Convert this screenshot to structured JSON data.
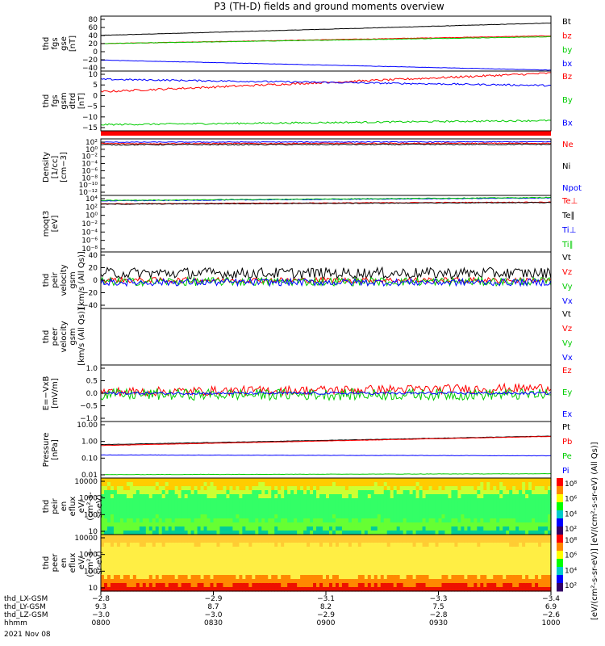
{
  "title": "P3 (TH-D) fields and ground moments overview",
  "chart_data": [
    {
      "type": "line",
      "ylabel": [
        "thd",
        "fgs",
        "gse",
        "[nT]"
      ],
      "yticks": [
        "80",
        "60",
        "40",
        "20",
        "0",
        "−20",
        "−40"
      ],
      "ylim": [
        -40,
        80
      ],
      "series": [
        {
          "name": "Bt",
          "color": "#000000",
          "start": 38,
          "end": 65,
          "noise": 0.4
        },
        {
          "name": "bz",
          "color": "#ff0000",
          "start": 20,
          "end": 37,
          "noise": 0.5
        },
        {
          "name": "by",
          "color": "#00cc00",
          "start": 20,
          "end": 35,
          "noise": 0.5
        },
        {
          "name": "bx",
          "color": "#0000ff",
          "start": -16,
          "end": -38,
          "noise": 0.4
        }
      ]
    },
    {
      "type": "line",
      "ylabel": [
        "thd",
        "fgs",
        "gsm",
        "dtrd",
        "[nT]"
      ],
      "yticks": [
        "10",
        "5",
        "0",
        "−5",
        "−10",
        "−15"
      ],
      "ylim": [
        -18,
        11
      ],
      "series": [
        {
          "name": "Bz",
          "color": "#ff0000",
          "start": 1,
          "end": 10,
          "noise": 0.5
        },
        {
          "name": "By",
          "color": "#00cc00",
          "start": -15,
          "end": -13,
          "noise": 0.4
        },
        {
          "name": "Bx",
          "color": "#0000ff",
          "start": 7,
          "end": 4,
          "noise": 0.4
        }
      ]
    },
    {
      "type": "line",
      "ylabel": [
        "Density",
        "[1/cc]",
        "[cm−3]"
      ],
      "yticks": [
        "10²",
        "10⁰",
        "10⁻²",
        "10⁻⁴",
        "10⁻⁶",
        "10⁻⁸",
        "10⁻¹⁰",
        "10⁻¹²"
      ],
      "ylim": [
        -13,
        2.5
      ],
      "log": true,
      "series": [
        {
          "name": "Ne",
          "color": "#ff0000",
          "start": 1.2,
          "end": 1.3,
          "noise": 0.15
        },
        {
          "name": "Ni",
          "color": "#000000",
          "start": 0.9,
          "end": 1.0,
          "noise": 0.15
        },
        {
          "name": "Npot",
          "color": "#0000ff",
          "start": 1.6,
          "end": 1.7,
          "noise": 0.1
        }
      ]
    },
    {
      "type": "line",
      "ylabel": [
        "moqt3",
        "[eV]"
      ],
      "yticks": [
        "10⁴",
        "10²",
        "10⁰",
        "10⁻²",
        "10⁻⁴",
        "10⁻⁶",
        "10⁻⁸"
      ],
      "ylim": [
        -9,
        4.5
      ],
      "log": true,
      "series": [
        {
          "name": "Te⊥",
          "color": "#ff0000",
          "start": 2.5,
          "end": 2.9,
          "noise": 0.08
        },
        {
          "name": "Te∥",
          "color": "#000000",
          "start": 2.4,
          "end": 2.8,
          "noise": 0.08
        },
        {
          "name": "Ti⊥",
          "color": "#0000ff",
          "start": 3.2,
          "end": 3.9,
          "noise": 0.08
        },
        {
          "name": "Ti∥",
          "color": "#00cc00",
          "start": 3.3,
          "end": 4.0,
          "noise": 0.08
        }
      ]
    },
    {
      "type": "line",
      "ylabel": [
        "thd",
        "peir",
        "velocity",
        "gsm",
        "[km/s (All Qs)]"
      ],
      "yticks": [
        "40",
        "20",
        "0",
        "−20",
        "−40"
      ],
      "ylim": [
        -40,
        40
      ],
      "series": [
        {
          "name": "Vt",
          "color": "#000000",
          "start": 10,
          "end": 10,
          "noise": 8
        },
        {
          "name": "Vz",
          "color": "#ff0000",
          "start": 0,
          "end": 0,
          "noise": 4
        },
        {
          "name": "Vy",
          "color": "#00cc00",
          "start": -2,
          "end": -2,
          "noise": 6
        },
        {
          "name": "Vx",
          "color": "#0000ff",
          "start": -3,
          "end": -3,
          "noise": 5
        }
      ]
    },
    {
      "type": "line",
      "ylabel": [
        "thd",
        "peer",
        "velocity",
        "gsm",
        "[km/s (All Qs)]"
      ],
      "yticks": [],
      "ylim": [
        -1,
        1
      ],
      "series": [
        {
          "name": "Vt",
          "color": "#000000"
        },
        {
          "name": "Vz",
          "color": "#ff0000"
        },
        {
          "name": "Vy",
          "color": "#00cc00"
        },
        {
          "name": "Vx",
          "color": "#0000ff"
        }
      ]
    },
    {
      "type": "line",
      "ylabel": [
        "E=−VxB",
        "[mV/m]"
      ],
      "yticks": [
        "1.0",
        "0.5",
        "0.0",
        "−0.5",
        "−1.0"
      ],
      "ylim": [
        -1.1,
        1.1
      ],
      "series": [
        {
          "name": "Ez",
          "color": "#ff0000",
          "start": 0.05,
          "end": 0.2,
          "noise": 0.18
        },
        {
          "name": "Ey",
          "color": "#00cc00",
          "start": -0.05,
          "end": -0.05,
          "noise": 0.22
        },
        {
          "name": "Ex",
          "color": "#0000ff",
          "start": 0,
          "end": 0,
          "noise": 0.05
        }
      ]
    },
    {
      "type": "line",
      "ylabel": [
        "Pressure",
        "[nPa]"
      ],
      "yticks": [
        "10.00",
        "1.00",
        "0.10",
        "0.01"
      ],
      "ylim": [
        -2.1,
        1.2
      ],
      "log": true,
      "series": [
        {
          "name": "Pt",
          "color": "#000000",
          "start": -0.15,
          "end": 0.35,
          "noise": 0.01
        },
        {
          "name": "Pb",
          "color": "#ff0000",
          "start": -0.2,
          "end": 0.33,
          "noise": 0.01
        },
        {
          "name": "Pe",
          "color": "#00cc00",
          "start": -1.9,
          "end": -1.85,
          "noise": 0.01
        },
        {
          "name": "Pi",
          "color": "#0000ff",
          "start": -0.75,
          "end": -0.8,
          "noise": 0.01
        }
      ]
    },
    {
      "type": "heatmap",
      "ylabel": [
        "thd",
        "peir",
        "en",
        "eflux",
        "eV/",
        "(cm²-s-",
        "sr-eV)"
      ],
      "yticks": [
        "10000",
        "1000",
        "100",
        "10"
      ],
      "colorbar_ticks": [
        "10⁸",
        "10⁶",
        "10⁴",
        "10²"
      ],
      "dominant": "green"
    },
    {
      "type": "heatmap",
      "ylabel": [
        "thd",
        "peer",
        "en",
        "eflux",
        "eV/",
        "(cm²-s-",
        "sr-eV)"
      ],
      "yticks": [
        "10000",
        "1000",
        "100",
        "10"
      ],
      "colorbar_ticks": [
        "10⁸",
        "10⁶",
        "10⁴",
        "10²"
      ],
      "dominant": "yellow"
    }
  ],
  "colorbar_label": "[eV/(cm²-s-sr-eV)] [eV/(cm²-s-sr-eV) (All Qs)]",
  "xaxis": {
    "rows": [
      {
        "label": "thd_LX-GSM",
        "values": [
          "−2.8",
          "−2.9",
          "−3.1",
          "−3.3",
          "−3.4"
        ]
      },
      {
        "label": "thd_LY-GSM",
        "values": [
          "9.3",
          "8.7",
          "8.2",
          "7.5",
          "6.9"
        ]
      },
      {
        "label": "thd_LZ-GSM",
        "values": [
          "−3.0",
          "−3.0",
          "−2.9",
          "−2.8",
          "−2.6"
        ]
      },
      {
        "label": "hhmm",
        "values": [
          "0800",
          "0830",
          "0900",
          "0930",
          "1000"
        ]
      }
    ],
    "date": "2021 Nov 08"
  }
}
